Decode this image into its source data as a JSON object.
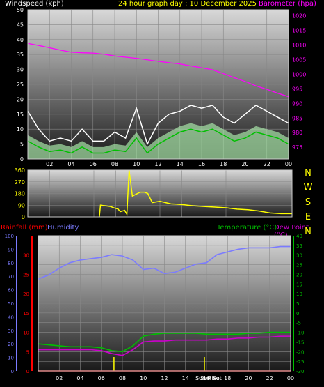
{
  "chart_data": [
    {
      "type": "line",
      "title": "24 hour graph day : 10 December 2025",
      "ylabel_left": "Windspeed (kph)",
      "ylabel_right": "Barometer (hpa)",
      "x_ticks": [
        "02",
        "04",
        "06",
        "08",
        "10",
        "12",
        "14",
        "16",
        "18",
        "20",
        "22",
        "00"
      ],
      "y_left_ticks": [
        0,
        5,
        10,
        15,
        20,
        25,
        30,
        35,
        40,
        45,
        50
      ],
      "y_left_range": [
        0,
        50
      ],
      "y_right_ticks": [
        975,
        980,
        985,
        990,
        995,
        1000,
        1005,
        1010,
        1015,
        1020
      ],
      "y_right_range": [
        971,
        1022
      ],
      "colors": {
        "gust": "#ffffff",
        "average": "#00c000",
        "fill": "#a8e6a8",
        "barometer": "#ff00ff",
        "left_axis_text": "#ffffff",
        "right_axis_text": "#ff00ff",
        "title": "#ffff00"
      },
      "series": [
        {
          "name": "Barometer (hpa)",
          "axis": "right",
          "x": [
            0,
            1,
            2,
            3,
            4,
            5,
            6,
            7,
            8,
            9,
            10,
            11,
            12,
            13,
            14,
            15,
            16,
            17,
            18,
            19,
            20,
            21,
            22,
            23,
            24
          ],
          "values": [
            1010.5,
            1009.8,
            1009,
            1008.2,
            1007.5,
            1007.3,
            1007.2,
            1006.8,
            1006.2,
            1005.8,
            1005.4,
            1004.9,
            1004.4,
            1003.9,
            1003.5,
            1002.8,
            1002.2,
            1001.5,
            1000.2,
            998.8,
            997.5,
            996,
            994.8,
            993.5,
            992.3
          ]
        },
        {
          "name": "Gust",
          "axis": "left",
          "x": [
            0,
            1,
            2,
            3,
            4,
            5,
            6,
            7,
            8,
            9,
            10,
            11,
            12,
            13,
            14,
            15,
            16,
            17,
            18,
            19,
            20,
            21,
            22,
            23,
            24
          ],
          "values": [
            16,
            10,
            6,
            7,
            6,
            10,
            6,
            6,
            9,
            7,
            17,
            5,
            12,
            15,
            16,
            18,
            17,
            18,
            14,
            12,
            15,
            18,
            16,
            14,
            12
          ]
        },
        {
          "name": "Average",
          "axis": "left",
          "x": [
            0,
            1,
            2,
            3,
            4,
            5,
            6,
            7,
            8,
            9,
            10,
            11,
            12,
            13,
            14,
            15,
            16,
            17,
            18,
            19,
            20,
            21,
            22,
            23,
            24
          ],
          "values": [
            6,
            4,
            2.5,
            3,
            2,
            4,
            2,
            2,
            3,
            2.5,
            7,
            2,
            5,
            7,
            9,
            10,
            9,
            10,
            8,
            6,
            7,
            9,
            8,
            7,
            5
          ]
        }
      ]
    },
    {
      "type": "scatter",
      "ylabel_right_ticks": [
        "N",
        "W",
        "S",
        "E",
        "N"
      ],
      "y_ticks": [
        0,
        90,
        180,
        270,
        360
      ],
      "y_range": [
        0,
        360
      ],
      "x_ticks": [
        "02",
        "04",
        "06",
        "08",
        "10",
        "12",
        "14",
        "16",
        "18",
        "20",
        "22",
        "00"
      ],
      "colors": {
        "direction": "#ffff00",
        "ticks": "#ffff00"
      },
      "series": [
        {
          "name": "Wind Direction",
          "x": [
            6.5,
            6.6,
            7.5,
            7.8,
            8.2,
            8.4,
            8.8,
            9.0,
            9.2,
            9.5,
            10.2,
            10.6,
            10.9,
            11.3,
            12,
            13,
            14,
            15,
            16,
            17,
            18,
            19,
            20,
            21,
            22,
            23,
            24
          ],
          "values": [
            0,
            90,
            80,
            70,
            60,
            40,
            50,
            20,
            360,
            160,
            190,
            190,
            180,
            110,
            120,
            100,
            95,
            85,
            80,
            75,
            70,
            60,
            55,
            45,
            30,
            25,
            25
          ]
        }
      ]
    },
    {
      "type": "line",
      "ylabel_left_1": "Rainfall (mm)",
      "ylabel_left_2": "Humidity",
      "ylabel_right_1": "Temperature (°C)",
      "ylabel_right_2": "Dew Point (°C)",
      "x_ticks": [
        "02",
        "04",
        "06",
        "08",
        "10",
        "12",
        "14",
        "16",
        "18",
        "20",
        "22",
        "00"
      ],
      "x_annotations": [
        "Sun Rise",
        "Sun Set"
      ],
      "humidity_ticks": [
        0,
        10,
        20,
        30,
        40,
        50,
        60,
        70,
        80,
        90,
        100
      ],
      "rain_ticks": [
        0,
        5,
        10,
        15,
        20,
        25,
        30
      ],
      "temp_ticks": [
        -30,
        -25,
        -20,
        -15,
        -10,
        -5,
        0,
        5,
        10,
        15,
        20,
        25,
        30,
        35,
        40
      ],
      "temp_range": [
        -30,
        40
      ],
      "humidity_range": [
        0,
        100
      ],
      "rain_range": [
        0,
        35
      ],
      "colors": {
        "humidity": "#7b7bff",
        "temperature": "#00c000",
        "dewpoint": "#cc00cc",
        "rain": "#ff0000",
        "sun": "#ffff00"
      },
      "series": [
        {
          "name": "Humidity",
          "axis": "humidity",
          "x": [
            0,
            1,
            2,
            3,
            4,
            5,
            6,
            7,
            8,
            9,
            10,
            11,
            12,
            13,
            14,
            15,
            16,
            17,
            18,
            19,
            20,
            21,
            22,
            23,
            24
          ],
          "values": [
            68,
            71,
            76,
            80,
            82,
            83,
            84,
            86,
            85,
            82,
            75,
            76,
            72,
            73,
            76,
            79,
            80,
            86,
            88,
            90,
            91,
            91,
            91,
            92,
            92
          ]
        },
        {
          "name": "Temperature",
          "axis": "temp",
          "x": [
            0,
            1,
            2,
            3,
            4,
            5,
            6,
            7,
            8,
            9,
            10,
            11,
            12,
            13,
            14,
            15,
            16,
            17,
            18,
            19,
            20,
            21,
            22,
            23,
            24
          ],
          "values": [
            -16,
            -16.5,
            -17,
            -17.5,
            -17.5,
            -17.5,
            -18,
            -19.5,
            -20,
            -17,
            -12,
            -11,
            -10.5,
            -10.5,
            -10.5,
            -10.5,
            -11,
            -11,
            -11,
            -11,
            -10.5,
            -10.5,
            -10,
            -10,
            -10
          ]
        },
        {
          "name": "Dew Point",
          "axis": "temp",
          "x": [
            0,
            1,
            2,
            3,
            4,
            5,
            6,
            7,
            8,
            9,
            10,
            11,
            12,
            13,
            14,
            15,
            16,
            17,
            18,
            19,
            20,
            21,
            22,
            23,
            24
          ],
          "values": [
            -19,
            -19,
            -19,
            -19,
            -19,
            -19,
            -19.5,
            -21,
            -22,
            -19,
            -15,
            -14.5,
            -14.5,
            -14,
            -14,
            -14,
            -14,
            -13.5,
            -13.5,
            -13,
            -13,
            -12.5,
            -12.5,
            -12,
            -12
          ]
        },
        {
          "name": "Rainfall",
          "axis": "rain",
          "x": [
            0,
            24
          ],
          "values": [
            0,
            0
          ]
        }
      ],
      "sunrise_hour": 7.2,
      "sunset_hour": 15.8
    }
  ]
}
